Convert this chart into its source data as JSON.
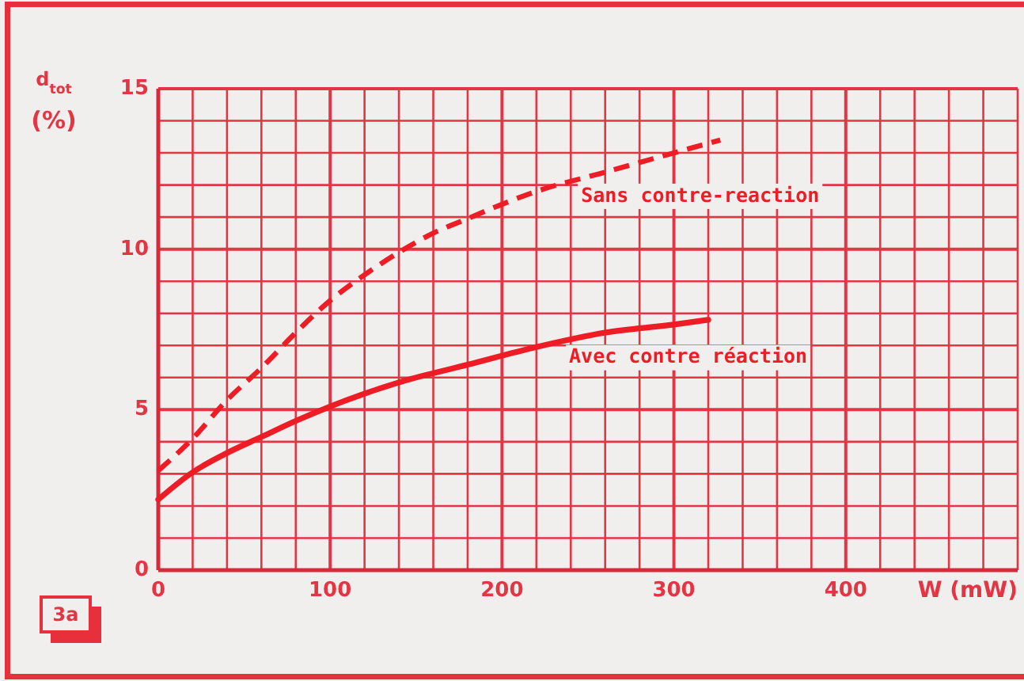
{
  "chart_data": {
    "type": "line",
    "xlabel": "W (mW)",
    "ylabel": "d$_{tot}$ (%)",
    "xlim": [
      0,
      500
    ],
    "xticks": [
      0,
      {
        "value": 20,
        "label": null
      },
      {
        "value": 40,
        "label": null
      },
      {
        "value": 60,
        "label": null
      },
      {
        "value": 80,
        "label": null
      },
      100,
      {
        "value": 120,
        "label": null
      },
      {
        "value": 140,
        "label": null
      },
      {
        "value": 160,
        "label": null
      },
      {
        "value": 180,
        "label": null
      },
      200,
      {
        "value": 220,
        "label": null
      },
      {
        "value": 240,
        "label": null
      },
      {
        "value": 260,
        "label": null
      },
      {
        "value": 280,
        "label": null
      },
      300,
      {
        "value": 320,
        "label": null
      },
      {
        "value": 340,
        "label": null
      },
      {
        "value": 360,
        "label": null
      },
      {
        "value": 380,
        "label": null
      },
      400,
      {
        "value": 420,
        "label": null
      },
      {
        "value": 440,
        "label": null
      },
      {
        "value": 460,
        "label": null
      },
      {
        "value": 480,
        "label": null
      },
      {
        "value": 500,
        "label": null
      }
    ],
    "ylim": [
      0,
      15
    ],
    "yticks": [
      0,
      {
        "value": 1,
        "label": null
      },
      {
        "value": 2,
        "label": null
      },
      {
        "value": 3,
        "label": null
      },
      {
        "value": 4,
        "label": null
      },
      5,
      {
        "value": 6,
        "label": null
      },
      {
        "value": 7,
        "label": null
      },
      {
        "value": 8,
        "label": null
      },
      {
        "value": 9,
        "label": null
      },
      10,
      {
        "value": 11,
        "label": null
      },
      {
        "value": 12,
        "label": null
      },
      {
        "value": 13,
        "label": null
      },
      {
        "value": 14,
        "label": null
      },
      15
    ],
    "grid": true,
    "series": [
      {
        "name": "Sans contre-reaction",
        "color": "#ee1c25",
        "line_style": "dashed",
        "x": [
          0,
          20,
          40,
          60,
          80,
          100,
          120,
          140,
          160,
          180,
          200,
          220,
          260,
          300,
          327
        ],
        "values": [
          3.1,
          4.1,
          5.3,
          6.3,
          7.4,
          8.4,
          9.2,
          9.9,
          10.5,
          10.95,
          11.4,
          11.8,
          12.4,
          13.0,
          13.4
        ]
      },
      {
        "name": "Avec contre réaction",
        "color": "#ee1c25",
        "line_style": "solid",
        "x": [
          0,
          20,
          40,
          60,
          80,
          100,
          140,
          180,
          220,
          260,
          300,
          320
        ],
        "values": [
          2.2,
          3.05,
          3.65,
          4.15,
          4.65,
          5.1,
          5.85,
          6.4,
          6.95,
          7.4,
          7.65,
          7.8
        ]
      }
    ],
    "annotations": [
      "3a"
    ]
  }
}
